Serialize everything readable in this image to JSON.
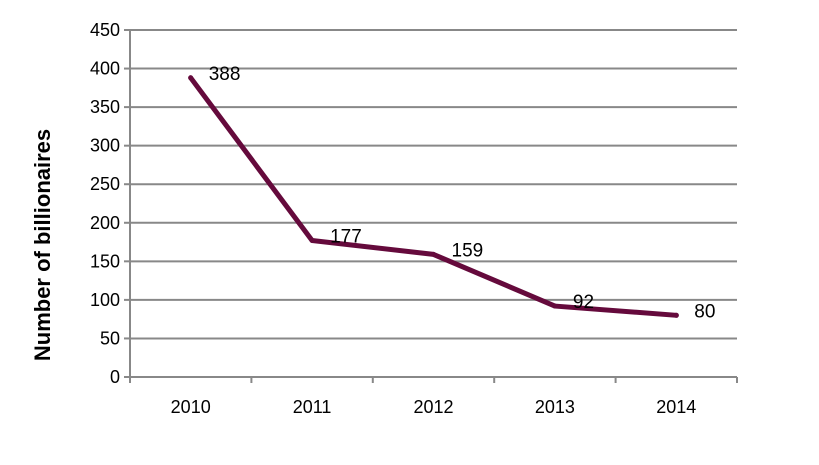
{
  "chart_data": {
    "type": "line",
    "title": "",
    "xlabel": "",
    "ylabel": "Number of billionaires",
    "categories": [
      "2010",
      "2011",
      "2012",
      "2013",
      "2014"
    ],
    "series": [
      {
        "values": [
          388,
          177,
          159,
          92,
          80
        ]
      }
    ],
    "data_labels": [
      "388",
      "177",
      "159",
      "92",
      "80"
    ],
    "ylim": [
      0,
      450
    ],
    "yticks": [
      "0",
      "50",
      "100",
      "150",
      "200",
      "250",
      "300",
      "350",
      "400",
      "450"
    ],
    "grid": true,
    "legend": "none",
    "colors": {
      "line": "#650A3C",
      "grid": "#888888",
      "axis": "#888888"
    }
  }
}
